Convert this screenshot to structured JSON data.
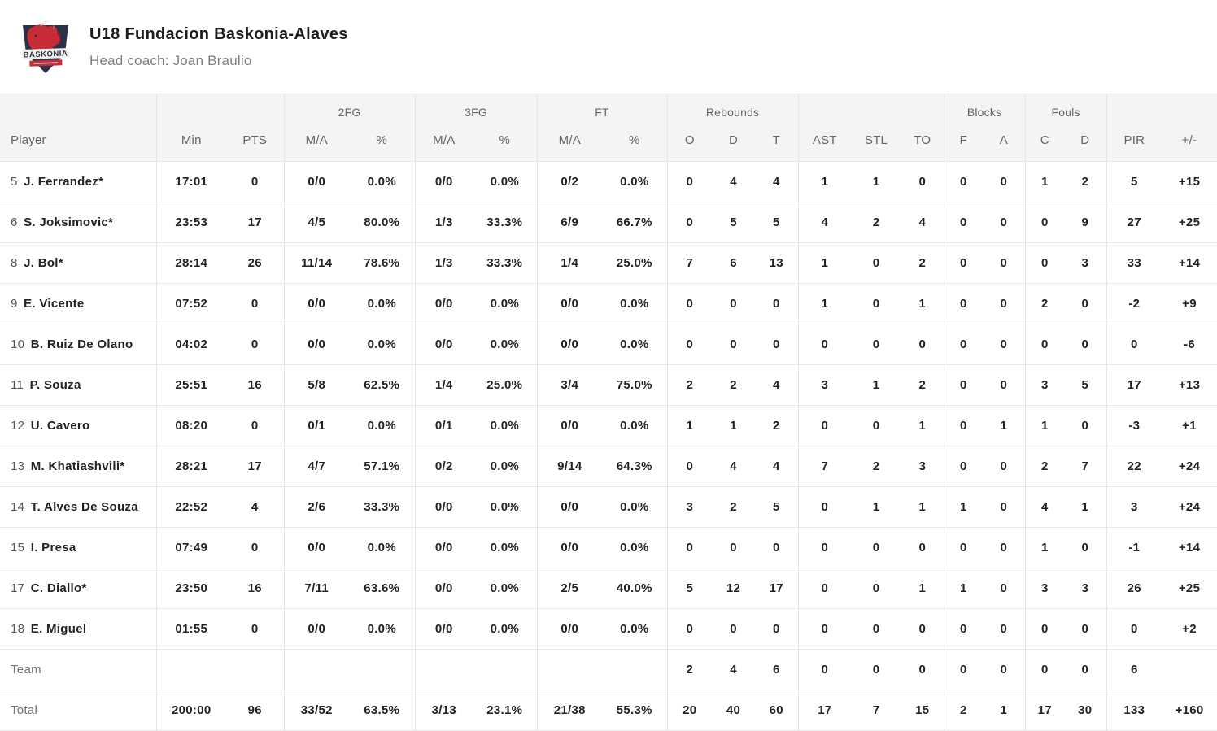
{
  "header": {
    "title": "U18 Fundacion Baskonia-Alaves",
    "subtitle": "Head coach: Joan Braulio",
    "logo_text": "BASKONIA"
  },
  "colors": {
    "accent_red": "#c62b36",
    "crest_navy": "#2a3149",
    "header_bg": "#f4f4f5",
    "border": "#e4e5e7",
    "text_dark": "#1d1f24",
    "text_gray": "#707276"
  },
  "table": {
    "header_groups": [
      {
        "label": "",
        "span": 1,
        "key": "player"
      },
      {
        "label": "",
        "span": 2,
        "key": "min-pts"
      },
      {
        "label": "2FG",
        "span": 2,
        "key": "2fg"
      },
      {
        "label": "3FG",
        "span": 2,
        "key": "3fg"
      },
      {
        "label": "FT",
        "span": 2,
        "key": "ft"
      },
      {
        "label": "Rebounds",
        "span": 3,
        "key": "rebounds"
      },
      {
        "label": "",
        "span": 3,
        "key": "ast-stl-to"
      },
      {
        "label": "Blocks",
        "span": 2,
        "key": "blocks"
      },
      {
        "label": "Fouls",
        "span": 2,
        "key": "fouls"
      },
      {
        "label": "",
        "span": 2,
        "key": "pir-plusminus"
      }
    ],
    "columns": [
      "Player",
      "Min",
      "PTS",
      "M/A",
      "%",
      "M/A",
      "%",
      "M/A",
      "%",
      "O",
      "D",
      "T",
      "AST",
      "STL",
      "TO",
      "F",
      "A",
      "C",
      "D",
      "PIR",
      "+/-"
    ],
    "rows": [
      {
        "number": "5",
        "name": "J. Ferrandez*",
        "cells": [
          "17:01",
          "0",
          "0/0",
          "0.0%",
          "0/0",
          "0.0%",
          "0/2",
          "0.0%",
          "0",
          "4",
          "4",
          "1",
          "1",
          "0",
          "0",
          "0",
          "1",
          "2",
          "5",
          "+15"
        ]
      },
      {
        "number": "6",
        "name": "S. Joksimovic*",
        "cells": [
          "23:53",
          "17",
          "4/5",
          "80.0%",
          "1/3",
          "33.3%",
          "6/9",
          "66.7%",
          "0",
          "5",
          "5",
          "4",
          "2",
          "4",
          "0",
          "0",
          "0",
          "9",
          "27",
          "+25"
        ]
      },
      {
        "number": "8",
        "name": "J. Bol*",
        "cells": [
          "28:14",
          "26",
          "11/14",
          "78.6%",
          "1/3",
          "33.3%",
          "1/4",
          "25.0%",
          "7",
          "6",
          "13",
          "1",
          "0",
          "2",
          "0",
          "0",
          "0",
          "3",
          "33",
          "+14"
        ]
      },
      {
        "number": "9",
        "name": "E. Vicente",
        "cells": [
          "07:52",
          "0",
          "0/0",
          "0.0%",
          "0/0",
          "0.0%",
          "0/0",
          "0.0%",
          "0",
          "0",
          "0",
          "1",
          "0",
          "1",
          "0",
          "0",
          "2",
          "0",
          "-2",
          "+9"
        ]
      },
      {
        "number": "10",
        "name": "B. Ruiz De Olano",
        "cells": [
          "04:02",
          "0",
          "0/0",
          "0.0%",
          "0/0",
          "0.0%",
          "0/0",
          "0.0%",
          "0",
          "0",
          "0",
          "0",
          "0",
          "0",
          "0",
          "0",
          "0",
          "0",
          "0",
          "-6"
        ]
      },
      {
        "number": "11",
        "name": "P. Souza",
        "cells": [
          "25:51",
          "16",
          "5/8",
          "62.5%",
          "1/4",
          "25.0%",
          "3/4",
          "75.0%",
          "2",
          "2",
          "4",
          "3",
          "1",
          "2",
          "0",
          "0",
          "3",
          "5",
          "17",
          "+13"
        ]
      },
      {
        "number": "12",
        "name": "U. Cavero",
        "cells": [
          "08:20",
          "0",
          "0/1",
          "0.0%",
          "0/1",
          "0.0%",
          "0/0",
          "0.0%",
          "1",
          "1",
          "2",
          "0",
          "0",
          "1",
          "0",
          "1",
          "1",
          "0",
          "-3",
          "+1"
        ]
      },
      {
        "number": "13",
        "name": "M. Khatiashvili*",
        "cells": [
          "28:21",
          "17",
          "4/7",
          "57.1%",
          "0/2",
          "0.0%",
          "9/14",
          "64.3%",
          "0",
          "4",
          "4",
          "7",
          "2",
          "3",
          "0",
          "0",
          "2",
          "7",
          "22",
          "+24"
        ]
      },
      {
        "number": "14",
        "name": "T. Alves De Souza",
        "cells": [
          "22:52",
          "4",
          "2/6",
          "33.3%",
          "0/0",
          "0.0%",
          "0/0",
          "0.0%",
          "3",
          "2",
          "5",
          "0",
          "1",
          "1",
          "1",
          "0",
          "4",
          "1",
          "3",
          "+24"
        ]
      },
      {
        "number": "15",
        "name": "I. Presa",
        "cells": [
          "07:49",
          "0",
          "0/0",
          "0.0%",
          "0/0",
          "0.0%",
          "0/0",
          "0.0%",
          "0",
          "0",
          "0",
          "0",
          "0",
          "0",
          "0",
          "0",
          "1",
          "0",
          "-1",
          "+14"
        ]
      },
      {
        "number": "17",
        "name": "C. Diallo*",
        "cells": [
          "23:50",
          "16",
          "7/11",
          "63.6%",
          "0/0",
          "0.0%",
          "2/5",
          "40.0%",
          "5",
          "12",
          "17",
          "0",
          "0",
          "1",
          "1",
          "0",
          "3",
          "3",
          "26",
          "+25"
        ]
      },
      {
        "number": "18",
        "name": "E. Miguel",
        "cells": [
          "01:55",
          "0",
          "0/0",
          "0.0%",
          "0/0",
          "0.0%",
          "0/0",
          "0.0%",
          "0",
          "0",
          "0",
          "0",
          "0",
          "0",
          "0",
          "0",
          "0",
          "0",
          "0",
          "+2"
        ]
      }
    ],
    "team_row": {
      "label": "Team",
      "cells": [
        "",
        "",
        "",
        "",
        "",
        "",
        "",
        "",
        "2",
        "4",
        "6",
        "0",
        "0",
        "0",
        "0",
        "0",
        "0",
        "0",
        "6",
        ""
      ]
    },
    "total_row": {
      "label": "Total",
      "cells": [
        "200:00",
        "96",
        "33/52",
        "63.5%",
        "3/13",
        "23.1%",
        "21/38",
        "55.3%",
        "20",
        "40",
        "60",
        "17",
        "7",
        "15",
        "2",
        "1",
        "17",
        "30",
        "133",
        "+160"
      ]
    }
  }
}
